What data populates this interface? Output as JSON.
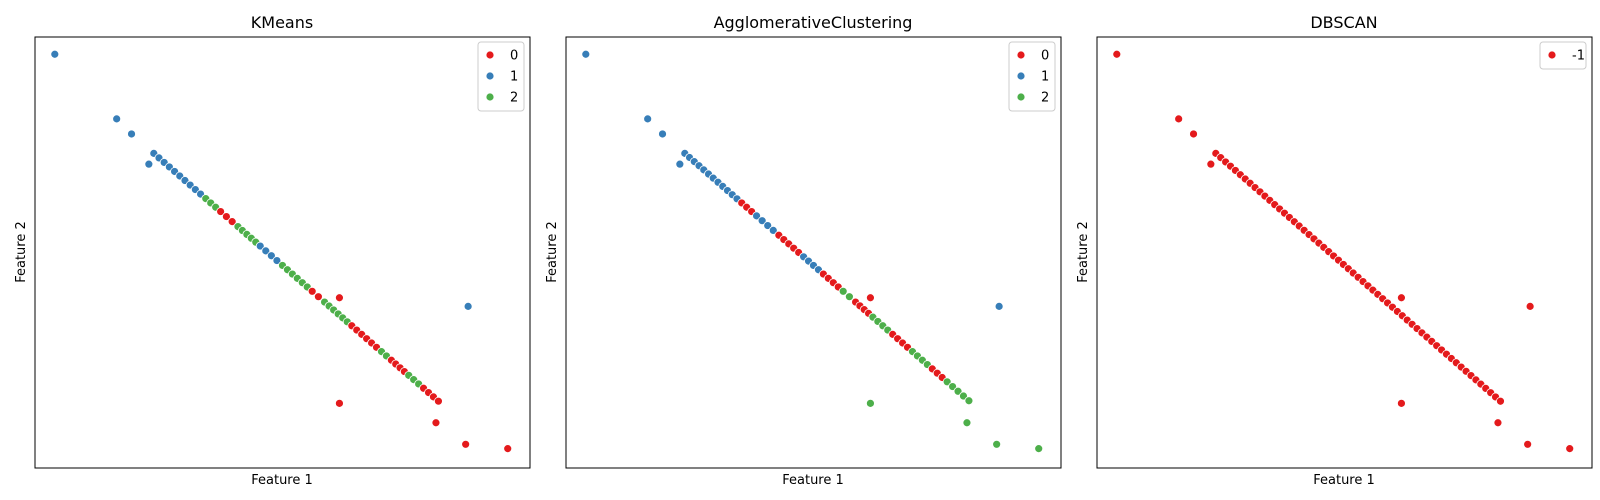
{
  "chart_data": [
    {
      "type": "scatter",
      "title": "KMeans",
      "xlabel": "Feature 1",
      "ylabel": "Feature 2",
      "xlim": [
        0,
        1
      ],
      "ylim": [
        0,
        1
      ],
      "grid": false,
      "legend_position": "top-right",
      "legend": [
        {
          "label": "0",
          "color": "#e41a1c"
        },
        {
          "label": "1",
          "color": "#377eb8"
        },
        {
          "label": "2",
          "color": "#4daf4a"
        }
      ],
      "outliers": [
        {
          "x": 0.04,
          "y": 0.96,
          "label": "1"
        },
        {
          "x": 0.165,
          "y": 0.81,
          "label": "1"
        },
        {
          "x": 0.195,
          "y": 0.775,
          "label": "1"
        },
        {
          "x": 0.23,
          "y": 0.705,
          "label": "1"
        },
        {
          "x": 0.615,
          "y": 0.395,
          "label": "0"
        },
        {
          "x": 0.875,
          "y": 0.375,
          "label": "1"
        },
        {
          "x": 0.615,
          "y": 0.15,
          "label": "0"
        },
        {
          "x": 0.81,
          "y": 0.105,
          "label": "0"
        },
        {
          "x": 0.87,
          "y": 0.055,
          "label": "0"
        },
        {
          "x": 0.955,
          "y": 0.045,
          "label": "0"
        }
      ],
      "segments": [
        {
          "x0": 0.24,
          "x1": 0.345,
          "label": "1"
        },
        {
          "x0": 0.345,
          "x1": 0.375,
          "label": "2"
        },
        {
          "x0": 0.375,
          "x1": 0.41,
          "label": "0"
        },
        {
          "x0": 0.41,
          "x1": 0.455,
          "label": "2"
        },
        {
          "x0": 0.455,
          "x1": 0.5,
          "label": "1"
        },
        {
          "x0": 0.5,
          "x1": 0.56,
          "label": "2"
        },
        {
          "x0": 0.56,
          "x1": 0.585,
          "label": "0"
        },
        {
          "x0": 0.585,
          "x1": 0.64,
          "label": "2"
        },
        {
          "x0": 0.64,
          "x1": 0.7,
          "label": "0"
        },
        {
          "x0": 0.7,
          "x1": 0.72,
          "label": "2"
        },
        {
          "x0": 0.72,
          "x1": 0.755,
          "label": "0"
        },
        {
          "x0": 0.755,
          "x1": 0.785,
          "label": "2"
        },
        {
          "x0": 0.785,
          "x1": 0.825,
          "label": "0"
        }
      ]
    },
    {
      "type": "scatter",
      "title": "AgglomerativeClustering",
      "xlabel": "Feature 1",
      "ylabel": "Feature 2",
      "xlim": [
        0,
        1
      ],
      "ylim": [
        0,
        1
      ],
      "grid": false,
      "legend_position": "top-right",
      "legend": [
        {
          "label": "0",
          "color": "#e41a1c"
        },
        {
          "label": "1",
          "color": "#377eb8"
        },
        {
          "label": "2",
          "color": "#4daf4a"
        }
      ],
      "outliers": [
        {
          "x": 0.04,
          "y": 0.96,
          "label": "1"
        },
        {
          "x": 0.165,
          "y": 0.81,
          "label": "1"
        },
        {
          "x": 0.195,
          "y": 0.775,
          "label": "1"
        },
        {
          "x": 0.23,
          "y": 0.705,
          "label": "1"
        },
        {
          "x": 0.615,
          "y": 0.395,
          "label": "0"
        },
        {
          "x": 0.875,
          "y": 0.375,
          "label": "1"
        },
        {
          "x": 0.615,
          "y": 0.15,
          "label": "2"
        },
        {
          "x": 0.81,
          "y": 0.105,
          "label": "2"
        },
        {
          "x": 0.87,
          "y": 0.055,
          "label": "2"
        },
        {
          "x": 0.955,
          "y": 0.045,
          "label": "2"
        }
      ],
      "segments": [
        {
          "x0": 0.24,
          "x1": 0.355,
          "label": "1"
        },
        {
          "x0": 0.355,
          "x1": 0.385,
          "label": "0"
        },
        {
          "x0": 0.385,
          "x1": 0.43,
          "label": "1"
        },
        {
          "x0": 0.43,
          "x1": 0.48,
          "label": "0"
        },
        {
          "x0": 0.48,
          "x1": 0.52,
          "label": "1"
        },
        {
          "x0": 0.52,
          "x1": 0.56,
          "label": "0"
        },
        {
          "x0": 0.56,
          "x1": 0.585,
          "label": "2"
        },
        {
          "x0": 0.585,
          "x1": 0.62,
          "label": "0"
        },
        {
          "x0": 0.62,
          "x1": 0.66,
          "label": "2"
        },
        {
          "x0": 0.66,
          "x1": 0.7,
          "label": "0"
        },
        {
          "x0": 0.7,
          "x1": 0.74,
          "label": "2"
        },
        {
          "x0": 0.74,
          "x1": 0.77,
          "label": "0"
        },
        {
          "x0": 0.77,
          "x1": 0.825,
          "label": "2"
        }
      ]
    },
    {
      "type": "scatter",
      "title": "DBSCAN",
      "xlabel": "Feature 1",
      "ylabel": "Feature 2",
      "xlim": [
        0,
        1
      ],
      "ylim": [
        0,
        1
      ],
      "grid": false,
      "legend_position": "top-right",
      "legend": [
        {
          "label": "-1",
          "color": "#e41a1c"
        }
      ],
      "outliers": [
        {
          "x": 0.04,
          "y": 0.96,
          "label": "-1"
        },
        {
          "x": 0.165,
          "y": 0.81,
          "label": "-1"
        },
        {
          "x": 0.195,
          "y": 0.775,
          "label": "-1"
        },
        {
          "x": 0.23,
          "y": 0.705,
          "label": "-1"
        },
        {
          "x": 0.615,
          "y": 0.395,
          "label": "-1"
        },
        {
          "x": 0.875,
          "y": 0.375,
          "label": "-1"
        },
        {
          "x": 0.615,
          "y": 0.15,
          "label": "-1"
        },
        {
          "x": 0.81,
          "y": 0.105,
          "label": "-1"
        },
        {
          "x": 0.87,
          "y": 0.055,
          "label": "-1"
        },
        {
          "x": 0.955,
          "y": 0.045,
          "label": "-1"
        }
      ],
      "segments": [
        {
          "x0": 0.24,
          "x1": 0.825,
          "label": "-1"
        }
      ]
    }
  ],
  "diagonal": {
    "x_start": 0.24,
    "y_start": 0.73,
    "x_end": 0.825,
    "y_end": 0.145,
    "points_per_segment_unit": 100
  }
}
